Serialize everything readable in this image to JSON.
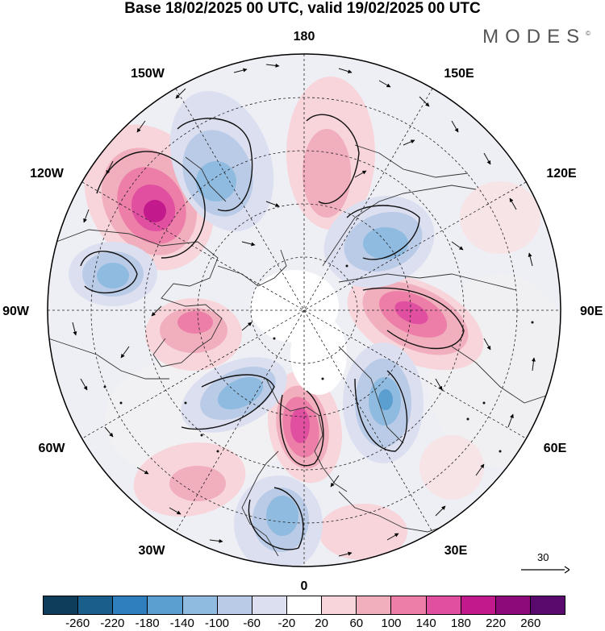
{
  "title": "Base 18/02/2025 00 UTC, valid 19/02/2025 00 UTC",
  "brand": "MODES",
  "brand_mark": "©",
  "lon_labels": {
    "top": "180",
    "ne1": "150E",
    "nw1": "150W",
    "ne2": "120E",
    "nw2": "120W",
    "e": "90E",
    "w": "90W",
    "se2": "60E",
    "sw2": "60W",
    "se1": "30E",
    "sw1": "30W",
    "bottom": "0"
  },
  "vector_scale": "30",
  "colorbar": {
    "colors": [
      "#0e3d5c",
      "#1a5e8c",
      "#2f7fbf",
      "#5a9fd0",
      "#8fbbe0",
      "#b9cbe6",
      "#dcdff0",
      "#ffffff",
      "#f7d5da",
      "#f1aebc",
      "#ec7ea8",
      "#e04fa0",
      "#c21a8c",
      "#8c0a7a",
      "#5a0a6c"
    ],
    "ticks": [
      "-260",
      "-220",
      "-180",
      "-140",
      "-100",
      "-60",
      "-20",
      "20",
      "60",
      "100",
      "140",
      "180",
      "220",
      "260"
    ]
  }
}
